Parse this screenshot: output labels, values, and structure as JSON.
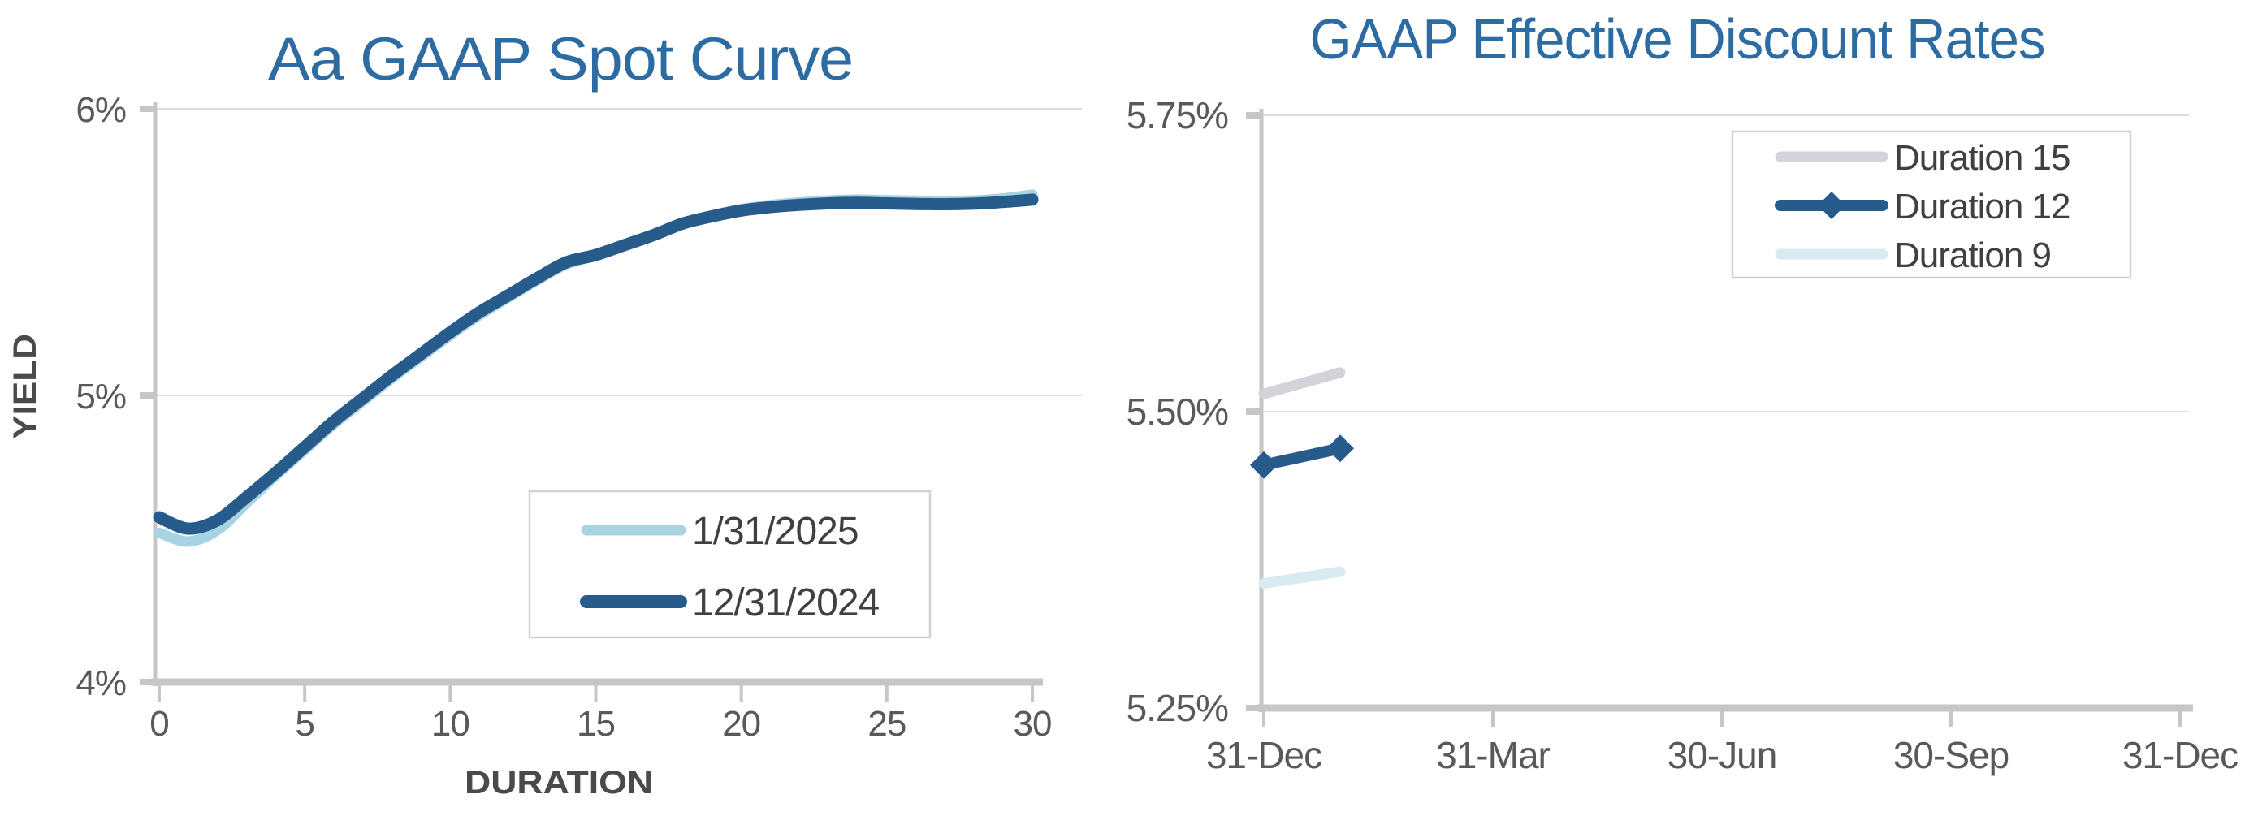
{
  "palette": {
    "title_blue": "#2D6CA2",
    "dark_blue": "#265B8C",
    "light_blue": "#A8D3E2",
    "series_gray": "#D2D4D9",
    "pale_blue": "#D9EAF2",
    "axis_line": "#C6C6C6",
    "gridline": "#DCDCDC",
    "tick_text": "#595959",
    "legend_text": "#404040"
  },
  "chart_data": [
    {
      "type": "line",
      "title": "Aa GAAP Spot Curve",
      "xlabel": "DURATION",
      "ylabel": "YIELD",
      "xlim": [
        0,
        30
      ],
      "ylim": [
        4,
        6
      ],
      "grid": "horizontal",
      "legend_position": "inside lower right",
      "x_ticks": [
        {
          "label": "0",
          "value": 0
        },
        {
          "label": "5",
          "value": 5
        },
        {
          "label": "10",
          "value": 10
        },
        {
          "label": "15",
          "value": 15
        },
        {
          "label": "20",
          "value": 20
        },
        {
          "label": "25",
          "value": 25
        },
        {
          "label": "30",
          "value": 30
        }
      ],
      "y_ticks": [
        {
          "label": "6%",
          "value": 6
        },
        {
          "label": "5%",
          "value": 5
        },
        {
          "label": "4%",
          "value": 4
        }
      ],
      "x": [
        0,
        1,
        2,
        3,
        4,
        5,
        6,
        7,
        8,
        9,
        10,
        11,
        12,
        13,
        14,
        15,
        16,
        17,
        18,
        19,
        20,
        21,
        22,
        23,
        24,
        25,
        26,
        27,
        28,
        29,
        30
      ],
      "series": [
        {
          "name": "1/31/2025",
          "color": "#A8D3E2",
          "values": [
            4.52,
            4.49,
            4.53,
            4.625,
            4.72,
            4.81,
            4.9,
            4.98,
            5.06,
            5.135,
            5.21,
            5.28,
            5.342,
            5.403,
            5.458,
            5.487,
            5.523,
            5.559,
            5.601,
            5.628,
            5.65,
            5.664,
            5.673,
            5.68,
            5.683,
            5.681,
            5.679,
            5.678,
            5.68,
            5.687,
            5.7
          ]
        },
        {
          "name": "12/31/2024",
          "color": "#265B8C",
          "values": [
            4.575,
            4.535,
            4.565,
            4.645,
            4.73,
            4.82,
            4.91,
            4.99,
            5.07,
            5.145,
            5.22,
            5.29,
            5.35,
            5.41,
            5.465,
            5.49,
            5.525,
            5.56,
            5.6,
            5.625,
            5.645,
            5.657,
            5.665,
            5.67,
            5.672,
            5.67,
            5.668,
            5.667,
            5.669,
            5.675,
            5.683
          ]
        }
      ]
    },
    {
      "type": "line",
      "title": "GAAP Effective Discount Rates",
      "xlabel": "",
      "ylabel": "",
      "ylim": [
        5.25,
        5.75
      ],
      "grid": "horizontal",
      "legend_position": "inside upper right",
      "x_ticks": [
        {
          "label": "31-Dec",
          "month": 0
        },
        {
          "label": "31-Mar",
          "month": 3
        },
        {
          "label": "30-Jun",
          "month": 6
        },
        {
          "label": "30-Sep",
          "month": 9
        },
        {
          "label": "31-Dec",
          "month": 12
        }
      ],
      "y_ticks": [
        {
          "label": "5.75%",
          "value": 5.75
        },
        {
          "label": "5.50%",
          "value": 5.5
        },
        {
          "label": "5.25%",
          "value": 5.25
        }
      ],
      "x_dates": [
        "31-Dec",
        "31-Jan"
      ],
      "x_months": [
        0,
        1
      ],
      "series": [
        {
          "name": "Duration 15",
          "color": "#D2D4D9",
          "values": [
            5.515,
            5.533
          ]
        },
        {
          "name": "Duration 12",
          "color": "#265B8C",
          "marker": "diamond",
          "values": [
            5.455,
            5.469
          ]
        },
        {
          "name": "Duration 9",
          "color": "#D9EAF2",
          "values": [
            5.355,
            5.365
          ]
        }
      ]
    }
  ]
}
